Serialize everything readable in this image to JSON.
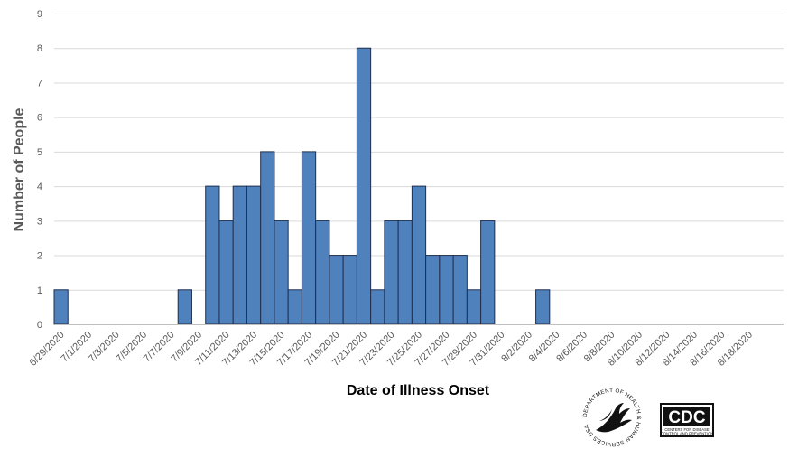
{
  "chart_data": {
    "type": "bar",
    "xlabel": "Date of Illness Onset",
    "ylabel": "Number of People",
    "ylim": [
      0,
      9
    ],
    "yticks": [
      "0",
      "1",
      "2",
      "3",
      "4",
      "5",
      "6",
      "7",
      "8",
      "9"
    ],
    "grid": true,
    "bar_color": "#4f81bd",
    "bar_edge_color": "#1f2f4f",
    "grid_color": "#d9d9d9",
    "categories": [
      "6/29/2020",
      "6/30/2020",
      "7/1/2020",
      "7/2/2020",
      "7/3/2020",
      "7/4/2020",
      "7/5/2020",
      "7/6/2020",
      "7/7/2020",
      "7/8/2020",
      "7/9/2020",
      "7/10/2020",
      "7/11/2020",
      "7/12/2020",
      "7/13/2020",
      "7/14/2020",
      "7/15/2020",
      "7/16/2020",
      "7/17/2020",
      "7/18/2020",
      "7/19/2020",
      "7/20/2020",
      "7/21/2020",
      "7/22/2020",
      "7/23/2020",
      "7/24/2020",
      "7/25/2020",
      "7/26/2020",
      "7/27/2020",
      "7/28/2020",
      "7/29/2020",
      "7/30/2020",
      "7/31/2020",
      "8/1/2020",
      "8/2/2020",
      "8/3/2020",
      "8/4/2020",
      "8/5/2020",
      "8/6/2020",
      "8/7/2020",
      "8/8/2020",
      "8/9/2020",
      "8/10/2020",
      "8/11/2020",
      "8/12/2020",
      "8/13/2020",
      "8/14/2020",
      "8/15/2020",
      "8/16/2020",
      "8/17/2020",
      "8/18/2020",
      "8/19/2020",
      "8/20/2020"
    ],
    "tick_labels": [
      "6/29/2020",
      "7/1/2020",
      "7/3/2020",
      "7/5/2020",
      "7/7/2020",
      "7/9/2020",
      "7/11/2020",
      "7/13/2020",
      "7/15/2020",
      "7/17/2020",
      "7/19/2020",
      "7/21/2020",
      "7/23/2020",
      "7/25/2020",
      "7/27/2020",
      "7/29/2020",
      "7/31/2020",
      "8/2/2020",
      "8/4/2020",
      "8/6/2020",
      "8/8/2020",
      "8/10/2020",
      "8/12/2020",
      "8/14/2020",
      "8/16/2020",
      "8/18/2020"
    ],
    "values": [
      1,
      0,
      0,
      0,
      0,
      0,
      0,
      0,
      0,
      1,
      0,
      4,
      3,
      4,
      4,
      5,
      3,
      1,
      5,
      3,
      2,
      2,
      8,
      1,
      3,
      3,
      4,
      2,
      2,
      2,
      1,
      3,
      0,
      0,
      0,
      1,
      0,
      0,
      0,
      0,
      0,
      0,
      0,
      0,
      0,
      0,
      0,
      0,
      0,
      0,
      0,
      0,
      0
    ]
  },
  "logos": {
    "hhs_text": "DEPARTMENT OF HEALTH & HUMAN SERVICES USA",
    "cdc_text": "CDC",
    "cdc_subtext_1": "CENTERS FOR DISEASE",
    "cdc_subtext_2": "CONTROL AND PREVENTION"
  }
}
